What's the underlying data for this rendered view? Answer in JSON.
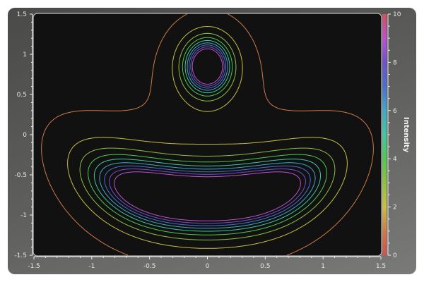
{
  "chart_data": {
    "type": "contour",
    "title": "",
    "xlabel": "",
    "ylabel": "",
    "xlim": [
      -1.5,
      1.5
    ],
    "ylim": [
      -1.5,
      1.5
    ],
    "x_ticks": [
      "-1.5",
      "-1",
      "-0.5",
      "0",
      "0.5",
      "1",
      "1.5"
    ],
    "y_ticks": [
      "-1.5",
      "-1",
      "-0.5",
      "0",
      "0.5",
      "1",
      "1.5"
    ],
    "levels": [
      1,
      2,
      3,
      4,
      5,
      6,
      7,
      8,
      9
    ],
    "features": [
      {
        "shape": "peak",
        "center": [
          0,
          0.85
        ]
      },
      {
        "shape": "kidney-shaped ridge",
        "center": [
          0,
          -0.8
        ]
      }
    ],
    "grid": false,
    "background": "#111111",
    "colorbar": {
      "label": "Intensity",
      "range": [
        0,
        10
      ],
      "tick_labels": [
        "0",
        "2",
        "4",
        "6",
        "8",
        "10"
      ],
      "colormap": [
        "#d05050",
        "#d07a48",
        "#c8c040",
        "#90c040",
        "#50c850",
        "#40c8a0",
        "#40a8c8",
        "#4870d0",
        "#7050d0",
        "#c050d0",
        "#d05060"
      ]
    }
  }
}
